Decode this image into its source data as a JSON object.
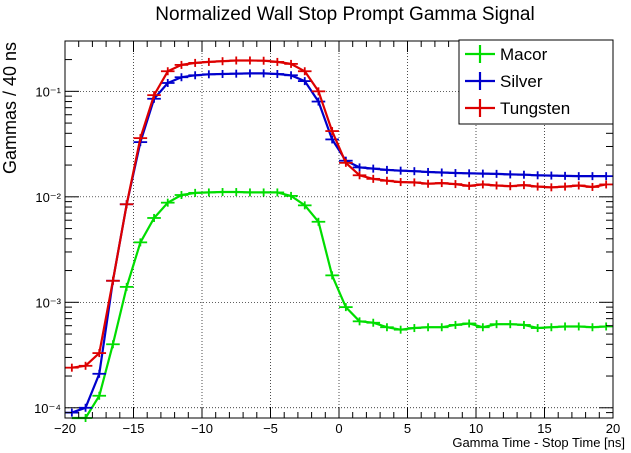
{
  "chart_data": {
    "type": "line",
    "title": "Normalized Wall Stop Prompt Gamma Signal",
    "xlabel": "Gamma Time - Stop Time [ns]",
    "ylabel": "Gammas / 40 ns",
    "xlim": [
      -20,
      20
    ],
    "ylim": [
      8e-05,
      0.3
    ],
    "yscale": "log",
    "grid": true,
    "legend": "top-right",
    "x_ticks": [
      -20,
      -15,
      -10,
      -5,
      0,
      5,
      10,
      15,
      20
    ],
    "x_tick_labels": [
      "−20",
      "−15",
      "−10",
      "−5",
      "0",
      "5",
      "10",
      "15",
      "20"
    ],
    "y_ticks": [
      0.0001,
      0.001,
      0.01,
      0.1
    ],
    "y_tick_labels": [
      "10⁻⁴",
      "10⁻³",
      "10⁻²",
      "10⁻¹"
    ],
    "x": [
      -19.5,
      -18.5,
      -17.5,
      -16.5,
      -15.5,
      -14.5,
      -13.5,
      -12.5,
      -11.5,
      -10.5,
      -9.5,
      -8.5,
      -7.5,
      -6.5,
      -5.5,
      -4.5,
      -3.5,
      -2.5,
      -1.5,
      -0.5,
      0.5,
      1.5,
      2.5,
      3.5,
      4.5,
      5.5,
      6.5,
      7.5,
      8.5,
      9.5,
      10.5,
      11.5,
      12.5,
      13.5,
      14.5,
      15.5,
      16.5,
      17.5,
      18.5,
      19.5
    ],
    "series": [
      {
        "name": "Macor",
        "color": "#00dd00",
        "values": [
          7e-05,
          8e-05,
          0.00013,
          0.0004,
          0.0014,
          0.0037,
          0.0063,
          0.0088,
          0.0104,
          0.0109,
          0.011,
          0.0111,
          0.0111,
          0.011,
          0.011,
          0.011,
          0.0102,
          0.0083,
          0.0058,
          0.0018,
          0.0009,
          0.00066,
          0.00064,
          0.00058,
          0.00055,
          0.00057,
          0.00058,
          0.00058,
          0.00061,
          0.00063,
          0.00058,
          0.00062,
          0.00062,
          0.00061,
          0.00057,
          0.00058,
          0.00059,
          0.00059,
          0.00058,
          0.00059
        ]
      },
      {
        "name": "Silver",
        "color": "#0000cc",
        "values": [
          9e-05,
          0.0001,
          0.00021,
          0.0016,
          0.0085,
          0.033,
          0.085,
          0.12,
          0.136,
          0.142,
          0.145,
          0.146,
          0.147,
          0.148,
          0.148,
          0.146,
          0.142,
          0.125,
          0.08,
          0.035,
          0.022,
          0.019,
          0.0185,
          0.018,
          0.0177,
          0.0175,
          0.0172,
          0.017,
          0.0168,
          0.0167,
          0.0166,
          0.0165,
          0.0163,
          0.0162,
          0.016,
          0.0159,
          0.0158,
          0.0157,
          0.0157,
          0.0157
        ]
      },
      {
        "name": "Tungsten",
        "color": "#dd0000",
        "values": [
          0.00024,
          0.00025,
          0.00033,
          0.0016,
          0.0085,
          0.036,
          0.092,
          0.155,
          0.178,
          0.186,
          0.19,
          0.193,
          0.196,
          0.196,
          0.195,
          0.19,
          0.182,
          0.155,
          0.1,
          0.042,
          0.021,
          0.016,
          0.0148,
          0.0142,
          0.0138,
          0.0137,
          0.0133,
          0.0135,
          0.0132,
          0.0127,
          0.0131,
          0.0128,
          0.0126,
          0.0129,
          0.0125,
          0.0123,
          0.0125,
          0.0128,
          0.0124,
          0.0131
        ]
      }
    ]
  }
}
